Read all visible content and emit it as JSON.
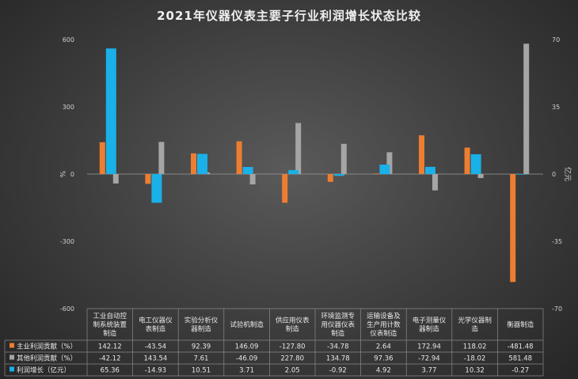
{
  "chart_data": {
    "type": "bar",
    "title": "2021年仪器仪表主要子行业利润增长状态比较",
    "ylabel_left": "%",
    "ylabel_right": "亿元",
    "ylim_left": [
      -600,
      600
    ],
    "ylim_right": [
      -70,
      70
    ],
    "yticks_left": [
      "600",
      "300",
      "0",
      "-300",
      "-600"
    ],
    "yticks_right": [
      "70",
      "35",
      "0",
      "-35",
      "-70"
    ],
    "categories": [
      "工业自动控制系统装置制造",
      "电工仪器仪表制造",
      "实验分析仪器制造",
      "试验机制造",
      "供应用仪表制造",
      "环境监测专用仪器仪表制造",
      "运输设备及生产用计数仪表制造",
      "电子测量仪器制造",
      "光学仪器制造",
      "衡器制造"
    ],
    "category_lines": [
      [
        "工业自动控",
        "制系统装置",
        "制造"
      ],
      [
        "电工仪器仪",
        "表制造"
      ],
      [
        "实验分析仪",
        "器制造"
      ],
      [
        "试验机制造"
      ],
      [
        "供应用仪表",
        "制造"
      ],
      [
        "环境监测专",
        "用仪器仪表",
        "制造"
      ],
      [
        "运输设备及",
        "生产用计数",
        "仪表制造"
      ],
      [
        "电子测量仪",
        "器制造"
      ],
      [
        "光学仪器制",
        "造"
      ],
      [
        "衡器制造"
      ]
    ],
    "series": [
      {
        "name": "主业利润贡献（%）",
        "axis": "left",
        "color": "#ed7d31",
        "values": [
          142.12,
          -43.54,
          92.39,
          146.09,
          -127.8,
          -34.78,
          2.64,
          172.94,
          118.02,
          -481.48
        ],
        "labels": [
          "142.12",
          "-43.54",
          "92.39",
          "146.09",
          "-127.80",
          "-34.78",
          "2.64",
          "172.94",
          "118.02",
          "-481.48"
        ]
      },
      {
        "name": "其他利润贡献（%）",
        "axis": "left",
        "color": "#a5a5a5",
        "values": [
          -42.12,
          143.54,
          7.61,
          -46.09,
          227.8,
          134.78,
          97.36,
          -72.94,
          -18.02,
          581.48
        ],
        "labels": [
          "-42.12",
          "143.54",
          "7.61",
          "-46.09",
          "227.80",
          "134.78",
          "97.36",
          "-72.94",
          "-18.02",
          "581.48"
        ]
      },
      {
        "name": "利润增长（亿元）",
        "axis": "right",
        "color": "#1ab0e8",
        "values": [
          65.36,
          -14.93,
          10.51,
          3.71,
          2.05,
          -0.92,
          4.92,
          3.77,
          10.32,
          -0.27
        ],
        "labels": [
          "65.36",
          "-14.93",
          "10.51",
          "3.71",
          "2.05",
          "-0.92",
          "4.92",
          "3.77",
          "10.32",
          "-0.27"
        ]
      }
    ],
    "grid": false,
    "legend": "table-below"
  }
}
